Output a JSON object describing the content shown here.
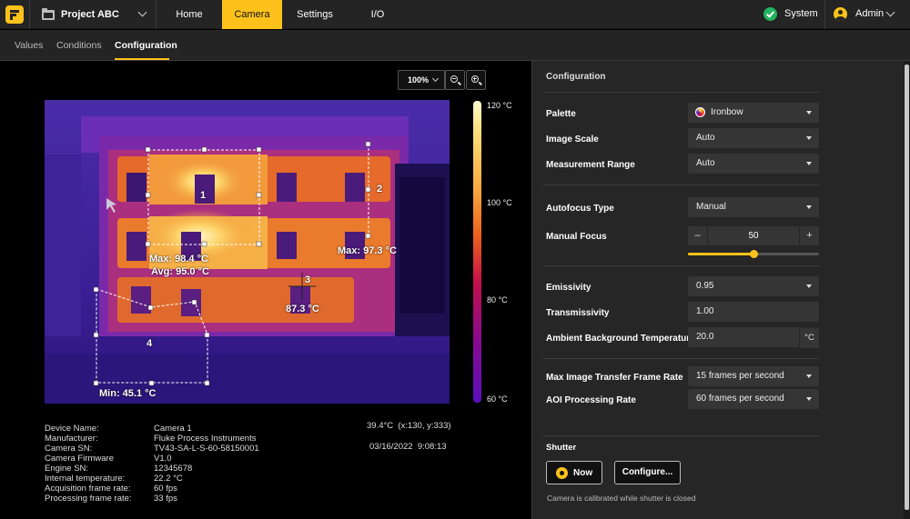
{
  "topbar": {
    "project_label": "Project ABC",
    "tabs": [
      {
        "label": "Home",
        "active": false
      },
      {
        "label": "Camera",
        "active": true
      },
      {
        "label": "Settings",
        "active": false
      },
      {
        "label": "I/O",
        "active": false
      }
    ],
    "status_label": "System",
    "user_label": "Admin"
  },
  "subtabs": [
    {
      "label": "Values",
      "active": false
    },
    {
      "label": "Conditions",
      "active": false
    },
    {
      "label": "Configuration",
      "active": true
    }
  ],
  "viewer": {
    "zoom": "100%",
    "scale_labels": [
      "120 °C",
      "100 °C",
      "80 °C",
      "60 °C"
    ],
    "regions": [
      {
        "id": "1",
        "max": "Max: 98.4 °C",
        "avg": "Avg: 95.0 °C"
      },
      {
        "id": "2",
        "max": "Max: 97.3 °C"
      },
      {
        "id": "3",
        "value": "87.3 °C"
      },
      {
        "id": "4",
        "min": "Min: 45.1 °C"
      }
    ]
  },
  "device_info": {
    "rows": [
      {
        "label": "Device Name:",
        "value": "Camera 1"
      },
      {
        "label": "Manufacturer:",
        "value": "Fluke Process Instruments"
      },
      {
        "label": "Camera SN:",
        "value": "TV43-SA-L-S-60-58150001"
      },
      {
        "label": "Camera Firmware",
        "value": "V1.0"
      },
      {
        "label": "Engine SN:",
        "value": "12345678"
      },
      {
        "label": "Internal temperature:",
        "value": "22.2 °C"
      },
      {
        "label": "Acquisition frame rate:",
        "value": "60 fps"
      },
      {
        "label": "Processing frame rate:",
        "value": "33 fps"
      }
    ],
    "cursor_reading": "39.4°C  (x:130, y:333)",
    "timestamp": "03/16/2022  9:08:13"
  },
  "config": {
    "title": "Configuration",
    "palette": {
      "label": "Palette",
      "value": "Ironbow"
    },
    "image_scale": {
      "label": "Image Scale",
      "value": "Auto"
    },
    "measurement_range": {
      "label": "Measurement Range",
      "value": "Auto"
    },
    "autofocus_type": {
      "label": "Autofocus Type",
      "value": "Manual"
    },
    "manual_focus": {
      "label": "Manual Focus",
      "value": "50",
      "minus": "–",
      "plus": "+",
      "level": 0.5
    },
    "emissivity": {
      "label": "Emissivity",
      "value": "0.95"
    },
    "transmissivity": {
      "label": "Transmissivity",
      "value": "1.00"
    },
    "ambient": {
      "label": "Ambient Background Temperature",
      "value": "20.0",
      "unit": "°C"
    },
    "max_transfer": {
      "label": "Max Image Transfer Frame Rate",
      "value": "15 frames per second"
    },
    "aoi_rate": {
      "label": "AOI Processing Rate",
      "value": "60 frames per second"
    },
    "shutter": {
      "title": "Shutter",
      "now_label": "Now",
      "configure_label": "Configure...",
      "note": "Camera is calibrated while shutter is closed"
    }
  }
}
